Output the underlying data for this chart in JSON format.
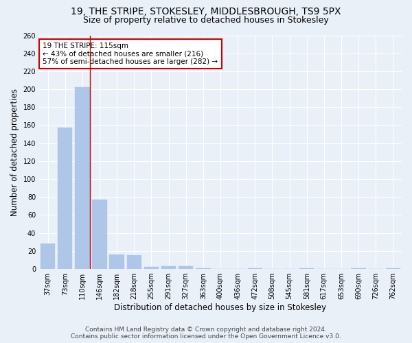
{
  "title": "19, THE STRIPE, STOKESLEY, MIDDLESBROUGH, TS9 5PX",
  "subtitle": "Size of property relative to detached houses in Stokesley",
  "xlabel": "Distribution of detached houses by size in Stokesley",
  "ylabel": "Number of detached properties",
  "bar_labels": [
    "37sqm",
    "73sqm",
    "110sqm",
    "146sqm",
    "182sqm",
    "218sqm",
    "255sqm",
    "291sqm",
    "327sqm",
    "363sqm",
    "400sqm",
    "436sqm",
    "472sqm",
    "508sqm",
    "545sqm",
    "581sqm",
    "617sqm",
    "653sqm",
    "690sqm",
    "726sqm",
    "762sqm"
  ],
  "bar_values": [
    28,
    157,
    202,
    77,
    16,
    15,
    2,
    3,
    3,
    1,
    0,
    0,
    1,
    0,
    0,
    1,
    0,
    0,
    1,
    0,
    1
  ],
  "bar_color": "#aec6e8",
  "bar_edge_color": "#aec6e8",
  "vline_x": 2.45,
  "vline_color": "#cc0000",
  "annotation_line1": "19 THE STRIPE: 115sqm",
  "annotation_line2": "← 43% of detached houses are smaller (216)",
  "annotation_line3": "57% of semi-detached houses are larger (282) →",
  "box_color": "white",
  "box_edge_color": "#cc0000",
  "ylim": [
    0,
    260
  ],
  "yticks": [
    0,
    20,
    40,
    60,
    80,
    100,
    120,
    140,
    160,
    180,
    200,
    220,
    240,
    260
  ],
  "background_color": "#eaf0f8",
  "grid_color": "white",
  "footer_line1": "Contains HM Land Registry data © Crown copyright and database right 2024.",
  "footer_line2": "Contains public sector information licensed under the Open Government Licence v3.0.",
  "title_fontsize": 10,
  "subtitle_fontsize": 9,
  "axis_label_fontsize": 8.5,
  "tick_fontsize": 7,
  "annotation_fontsize": 7.5,
  "footer_fontsize": 6.5
}
